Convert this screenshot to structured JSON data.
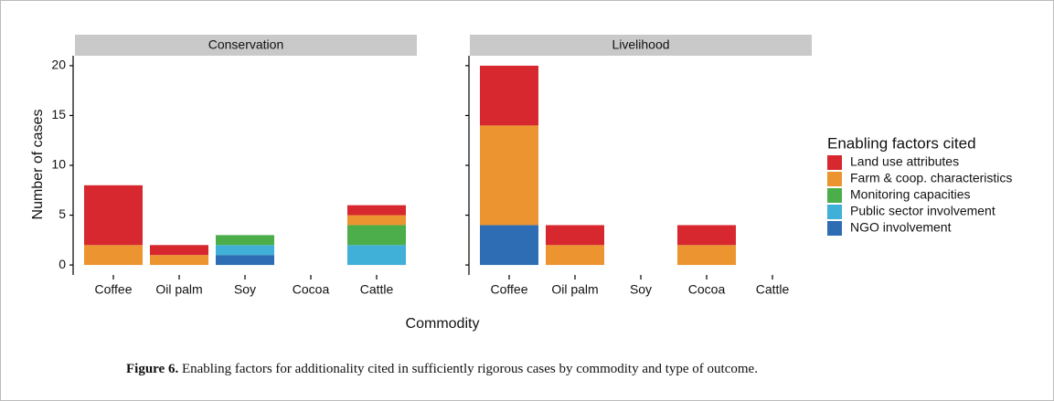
{
  "chart_data": {
    "type": "bar",
    "stacked": true,
    "facets": [
      "Conservation",
      "Livelihood"
    ],
    "x_label": "Commodity",
    "y_label": "Number of cases",
    "legend_title": "Enabling factors cited",
    "categories": [
      "Coffee",
      "Oil palm",
      "Soy",
      "Cocoa",
      "Cattle"
    ],
    "ylim": [
      -1,
      21
    ],
    "yticks": [
      0,
      5,
      10,
      15,
      20
    ],
    "series": [
      {
        "name": "Land use attributes",
        "color": "#d7282f",
        "values": [
          [
            6,
            1,
            0,
            0,
            1
          ],
          [
            6,
            2,
            0,
            2,
            0
          ]
        ]
      },
      {
        "name": "Farm & coop. characteristics",
        "color": "#ec9430",
        "values": [
          [
            2,
            1,
            0,
            0,
            1
          ],
          [
            10,
            2,
            0,
            2,
            0
          ]
        ]
      },
      {
        "name": "Monitoring capacities",
        "color": "#4bae4b",
        "values": [
          [
            0,
            0,
            1,
            0,
            2
          ],
          [
            0,
            0,
            0,
            0,
            0
          ]
        ]
      },
      {
        "name": "Public sector involvement",
        "color": "#41b0d8",
        "values": [
          [
            0,
            0,
            1,
            0,
            2
          ],
          [
            0,
            0,
            0,
            0,
            0
          ]
        ]
      },
      {
        "name": "NGO involvement",
        "color": "#2e6cb3",
        "values": [
          [
            0,
            0,
            1,
            0,
            0
          ],
          [
            4,
            0,
            0,
            0,
            0
          ]
        ]
      }
    ]
  },
  "caption": {
    "label": "Figure 6.",
    "text": "Enabling factors for additionality cited in sufficiently rigorous cases by commodity and type of outcome."
  }
}
